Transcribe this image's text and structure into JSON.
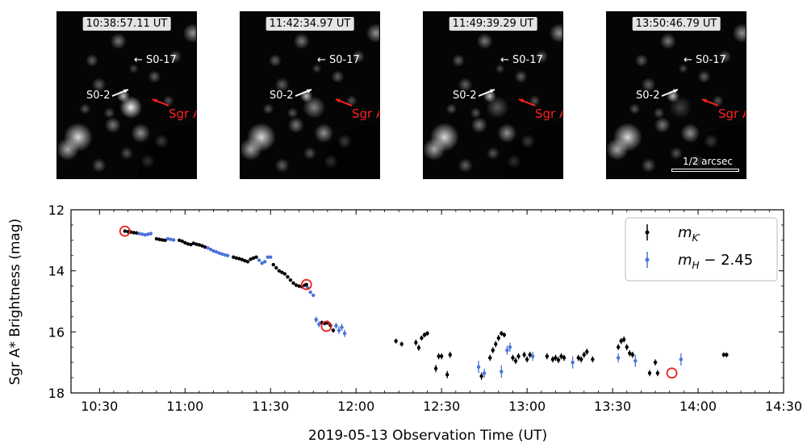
{
  "panels": [
    {
      "timestamp": "10:38:57.11 UT",
      "show_scale": false
    },
    {
      "timestamp": "11:42:34.97 UT",
      "show_scale": false
    },
    {
      "timestamp": "11:49:39.29 UT",
      "show_scale": false
    },
    {
      "timestamp": "13:50:46.79 UT",
      "show_scale": true
    }
  ],
  "labels": {
    "s017": "S0-17",
    "s02": "S0-2",
    "sgra": "Sgr A*",
    "scale": "1/2 arcsec"
  },
  "colors": {
    "black_series": "#000000",
    "blue_series": "#4a72d8",
    "highlight": "#e8211c",
    "annotation_red": "#ff2020"
  },
  "chart_data": {
    "type": "scatter",
    "title": "",
    "xlabel": "2019-05-13 Observation Time (UT)",
    "ylabel": "Sgr A* Brightness (mag)",
    "xlim_minutes": [
      620,
      870
    ],
    "ylim": [
      12,
      18
    ],
    "y_inverted": true,
    "x_ticks": [
      {
        "v": 630,
        "label": "10:30"
      },
      {
        "v": 660,
        "label": "11:00"
      },
      {
        "v": 690,
        "label": "11:30"
      },
      {
        "v": 720,
        "label": "12:00"
      },
      {
        "v": 750,
        "label": "12:30"
      },
      {
        "v": 780,
        "label": "13:00"
      },
      {
        "v": 810,
        "label": "13:30"
      },
      {
        "v": 840,
        "label": "14:00"
      },
      {
        "v": 870,
        "label": "14:30"
      }
    ],
    "y_ticks": [
      {
        "v": 12,
        "label": "12"
      },
      {
        "v": 14,
        "label": "14"
      },
      {
        "v": 16,
        "label": "16"
      },
      {
        "v": 18,
        "label": "18"
      }
    ],
    "legend": {
      "position": "top-right",
      "entries": [
        "m_K'",
        "m_H - 2.45"
      ]
    },
    "series": [
      {
        "name": "m_K'",
        "color": "#000000",
        "points": [
          [
            638.9,
            12.7,
            0.05
          ],
          [
            640,
            12.72,
            0.05
          ],
          [
            641,
            12.73,
            0.05
          ],
          [
            642,
            12.75,
            0.05
          ],
          [
            643,
            12.76,
            0.05
          ],
          [
            650,
            12.95,
            0.05
          ],
          [
            651,
            12.97,
            0.05
          ],
          [
            652,
            12.99,
            0.05
          ],
          [
            653,
            13.0,
            0.05
          ],
          [
            658,
            13.0,
            0.05
          ],
          [
            659,
            13.03,
            0.05
          ],
          [
            660,
            13.08,
            0.05
          ],
          [
            661,
            13.12,
            0.05
          ],
          [
            662,
            13.14,
            0.05
          ],
          [
            663,
            13.1,
            0.05
          ],
          [
            664,
            13.13,
            0.05
          ],
          [
            665,
            13.15,
            0.05
          ],
          [
            666,
            13.18,
            0.05
          ],
          [
            667,
            13.22,
            0.05
          ],
          [
            677,
            13.55,
            0.05
          ],
          [
            678,
            13.58,
            0.05
          ],
          [
            679,
            13.6,
            0.05
          ],
          [
            680,
            13.63,
            0.05
          ],
          [
            681,
            13.67,
            0.05
          ],
          [
            682,
            13.7,
            0.05
          ],
          [
            683,
            13.62,
            0.05
          ],
          [
            684,
            13.58,
            0.05
          ],
          [
            685,
            13.55,
            0.05
          ],
          [
            691,
            13.8,
            0.05
          ],
          [
            692,
            13.9,
            0.05
          ],
          [
            693,
            14.0,
            0.05
          ],
          [
            694,
            14.05,
            0.05
          ],
          [
            695,
            14.1,
            0.05
          ],
          [
            696,
            14.2,
            0.05
          ],
          [
            697,
            14.3,
            0.05
          ],
          [
            698,
            14.4,
            0.05
          ],
          [
            699,
            14.47,
            0.05
          ],
          [
            700,
            14.5,
            0.05
          ],
          [
            701,
            14.52,
            0.05
          ],
          [
            702,
            14.47,
            0.05
          ],
          [
            702.6,
            14.45,
            0.05
          ],
          [
            708,
            15.7,
            0.07
          ],
          [
            709,
            15.72,
            0.07
          ],
          [
            710,
            15.7,
            0.07
          ],
          [
            711,
            15.78,
            0.07
          ],
          [
            712,
            15.95,
            0.07
          ],
          [
            734,
            16.3,
            0.08
          ],
          [
            736,
            16.4,
            0.08
          ],
          [
            741,
            16.35,
            0.1
          ],
          [
            742,
            16.52,
            0.1
          ],
          [
            743,
            16.2,
            0.08
          ],
          [
            744,
            16.1,
            0.08
          ],
          [
            745,
            16.05,
            0.08
          ],
          [
            748,
            17.2,
            0.12
          ],
          [
            749,
            16.8,
            0.1
          ],
          [
            750,
            16.8,
            0.1
          ],
          [
            752,
            17.4,
            0.12
          ],
          [
            753,
            16.75,
            0.1
          ],
          [
            764,
            17.45,
            0.12
          ],
          [
            767,
            16.85,
            0.1
          ],
          [
            768,
            16.6,
            0.1
          ],
          [
            769,
            16.4,
            0.1
          ],
          [
            770,
            16.2,
            0.1
          ],
          [
            771,
            16.05,
            0.08
          ],
          [
            772,
            16.1,
            0.08
          ],
          [
            775,
            16.85,
            0.1
          ],
          [
            776,
            16.95,
            0.1
          ],
          [
            777,
            16.8,
            0.1
          ],
          [
            779,
            16.75,
            0.1
          ],
          [
            780,
            16.9,
            0.1
          ],
          [
            781,
            16.75,
            0.1
          ],
          [
            787,
            16.8,
            0.1
          ],
          [
            789,
            16.9,
            0.1
          ],
          [
            790,
            16.85,
            0.1
          ],
          [
            791,
            16.92,
            0.1
          ],
          [
            792,
            16.8,
            0.1
          ],
          [
            793,
            16.85,
            0.1
          ],
          [
            798,
            16.85,
            0.1
          ],
          [
            799,
            16.9,
            0.1
          ],
          [
            800,
            16.75,
            0.1
          ],
          [
            801,
            16.65,
            0.1
          ],
          [
            803,
            16.9,
            0.1
          ],
          [
            812,
            16.5,
            0.1
          ],
          [
            813,
            16.3,
            0.1
          ],
          [
            814,
            16.25,
            0.1
          ],
          [
            815,
            16.5,
            0.1
          ],
          [
            816,
            16.7,
            0.1
          ],
          [
            817,
            16.75,
            0.1
          ],
          [
            823,
            17.35,
            0.1
          ],
          [
            825,
            17.0,
            0.1
          ],
          [
            825.8,
            17.35,
            0.1
          ],
          [
            849,
            16.75,
            0.08
          ],
          [
            850,
            16.75,
            0.08
          ]
        ]
      },
      {
        "name": "m_H - 2.45",
        "color": "#4a72d8",
        "points": [
          [
            644,
            12.78,
            0.05
          ],
          [
            645,
            12.8,
            0.05
          ],
          [
            646,
            12.82,
            0.05
          ],
          [
            647,
            12.8,
            0.05
          ],
          [
            648,
            12.78,
            0.05
          ],
          [
            654,
            12.95,
            0.05
          ],
          [
            655,
            12.97,
            0.05
          ],
          [
            656,
            12.99,
            0.05
          ],
          [
            668,
            13.25,
            0.05
          ],
          [
            669,
            13.3,
            0.05
          ],
          [
            670,
            13.35,
            0.05
          ],
          [
            671,
            13.38,
            0.05
          ],
          [
            672,
            13.42,
            0.05
          ],
          [
            673,
            13.45,
            0.05
          ],
          [
            674,
            13.48,
            0.05
          ],
          [
            675,
            13.5,
            0.05
          ],
          [
            686,
            13.65,
            0.05
          ],
          [
            687,
            13.75,
            0.05
          ],
          [
            688,
            13.7,
            0.05
          ],
          [
            689,
            13.55,
            0.05
          ],
          [
            690,
            13.55,
            0.05
          ],
          [
            703,
            14.55,
            0.05
          ],
          [
            704,
            14.7,
            0.05
          ],
          [
            705,
            14.8,
            0.05
          ],
          [
            706,
            15.6,
            0.1
          ],
          [
            707,
            15.75,
            0.1
          ],
          [
            713,
            15.8,
            0.1
          ],
          [
            714,
            15.95,
            0.12
          ],
          [
            715,
            15.85,
            0.12
          ],
          [
            716,
            16.05,
            0.12
          ],
          [
            763,
            17.15,
            0.2
          ],
          [
            765,
            17.35,
            0.15
          ],
          [
            771,
            17.3,
            0.2
          ],
          [
            773,
            16.6,
            0.15
          ],
          [
            774,
            16.5,
            0.15
          ],
          [
            782,
            16.8,
            0.15
          ],
          [
            796,
            17.0,
            0.2
          ],
          [
            812,
            16.85,
            0.15
          ],
          [
            818,
            16.95,
            0.2
          ],
          [
            834,
            16.9,
            0.2
          ]
        ]
      }
    ],
    "highlighted_points": [
      [
        638.9,
        12.7
      ],
      [
        702.6,
        14.45
      ],
      [
        709.6,
        15.82
      ],
      [
        830.8,
        17.35
      ]
    ]
  }
}
